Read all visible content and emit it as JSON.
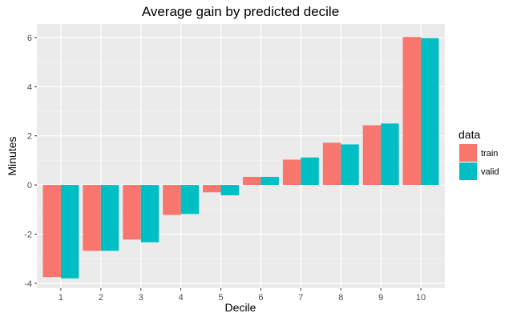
{
  "chart_data": {
    "type": "bar",
    "title": "Average gain by predicted decile",
    "xlabel": "Decile",
    "ylabel": "Minutes",
    "categories": [
      "1",
      "2",
      "3",
      "4",
      "5",
      "6",
      "7",
      "8",
      "9",
      "10"
    ],
    "series": [
      {
        "name": "train",
        "color": "#F8766D",
        "values": [
          -3.75,
          -2.68,
          -2.22,
          -1.22,
          -0.3,
          0.33,
          1.03,
          1.72,
          2.43,
          6.02
        ]
      },
      {
        "name": "valid",
        "color": "#00BFC4",
        "values": [
          -3.8,
          -2.68,
          -2.33,
          -1.18,
          -0.42,
          0.33,
          1.12,
          1.65,
          2.5,
          5.98
        ]
      }
    ],
    "ylim": [
      -4.2,
      6.55
    ],
    "yticks": [
      -4,
      -2,
      0,
      2,
      4,
      6
    ],
    "yticks_labels": [
      "-4",
      "-2",
      "0",
      "2",
      "4",
      "6"
    ],
    "grid": true,
    "legend": {
      "title": "data",
      "position": "right"
    },
    "colors": {
      "panel": "#EBEBEB",
      "grid_major": "#FFFFFF",
      "grid_minor": "#F5F5F5"
    }
  }
}
